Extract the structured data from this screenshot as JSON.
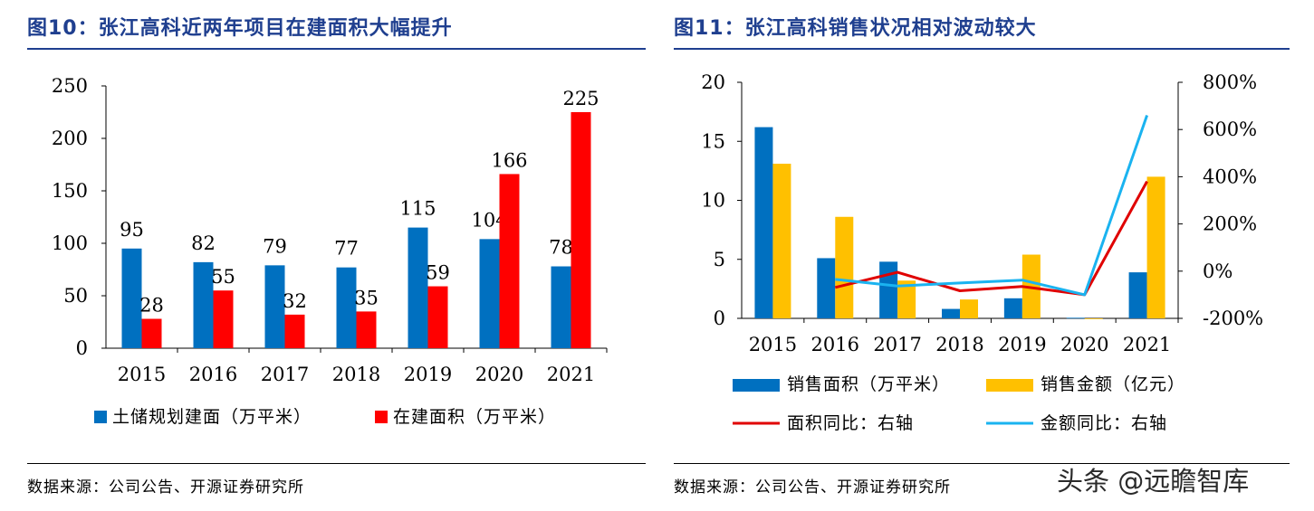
{
  "charts": [
    {
      "title": "图10：张江高科近两年项目在建面积大幅提升",
      "source": "数据来源：公司公告、开源证券研究所"
    },
    {
      "title": "图11：张江高科销售状况相对波动较大",
      "source": "数据来源：公司公告、开源证券研究所"
    }
  ],
  "watermark": "头条 @远瞻智库",
  "colors": {
    "blue": "#0070c0",
    "red": "#ff0000",
    "gold": "#ffc000",
    "darkred": "#e00000",
    "cyan": "#1ab3f0",
    "title": "#1f3f8f"
  },
  "chart_data": [
    {
      "type": "bar",
      "categories": [
        "2015",
        "2016",
        "2017",
        "2018",
        "2019",
        "2020",
        "2021"
      ],
      "series": [
        {
          "name": "土储规划建面（万平米）",
          "values": [
            95,
            82,
            79,
            77,
            115,
            104,
            78
          ],
          "color": "#0070c0"
        },
        {
          "name": "在建面积（万平米）",
          "values": [
            28,
            55,
            32,
            35,
            59,
            166,
            225
          ],
          "color": "#ff0000"
        }
      ],
      "data_labels": true,
      "ylim": [
        0,
        250
      ],
      "yticks": [
        0,
        50,
        100,
        150,
        200,
        250
      ],
      "legend": "bottom"
    },
    {
      "type": "bar",
      "categories": [
        "2015",
        "2016",
        "2017",
        "2018",
        "2019",
        "2020",
        "2021"
      ],
      "series": [
        {
          "name": "销售面积（万平米）",
          "type": "bar",
          "axis": "left",
          "values": [
            16.2,
            5.1,
            4.8,
            0.8,
            1.7,
            0.05,
            3.9
          ],
          "color": "#0070c0"
        },
        {
          "name": "销售金额（亿元）",
          "type": "bar",
          "axis": "left",
          "values": [
            13.1,
            8.6,
            3.2,
            1.6,
            5.4,
            0.0,
            12.0
          ],
          "color": "#ffc000"
        },
        {
          "name": "面积同比：右轴",
          "type": "line",
          "axis": "right",
          "values": [
            null,
            -69,
            -5,
            -83,
            -65,
            -100,
            380
          ],
          "color": "#e00000"
        },
        {
          "name": "金额同比：右轴",
          "type": "line",
          "axis": "right",
          "values": [
            null,
            -35,
            -63,
            -50,
            -38,
            -100,
            660
          ],
          "color": "#1ab3f0"
        }
      ],
      "ylim_left": [
        0,
        20
      ],
      "yticks_left": [
        0,
        5,
        10,
        15,
        20
      ],
      "ylim_right": [
        -200,
        800
      ],
      "yticks_right": [
        "-200%",
        "0%",
        "200%",
        "400%",
        "600%",
        "800%"
      ],
      "legend": "bottom"
    }
  ]
}
